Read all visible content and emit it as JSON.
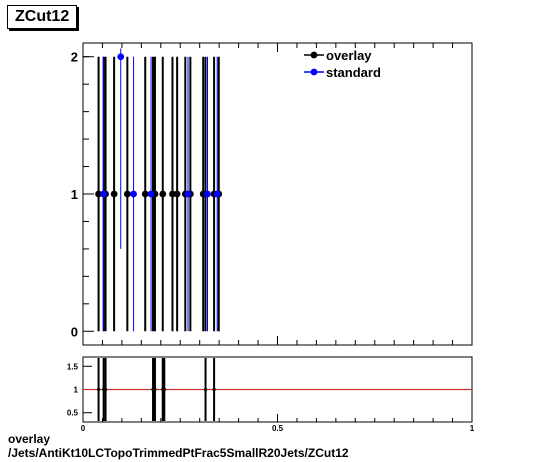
{
  "title": "ZCut12",
  "caption": {
    "line1": "overlay",
    "line2": "/Jets/AntiKt10LCTopoTrimmedPtFrac5SmallR20Jets/ZCut12"
  },
  "colors": {
    "overlay": "#000000",
    "standard": "#0000ff",
    "ratio_line": "#cc3333"
  },
  "chart_data": [
    {
      "type": "scatter",
      "title": "",
      "xlabel": "",
      "ylabel": "",
      "xlim": [
        0,
        1
      ],
      "ylim": [
        -0.1,
        2.1
      ],
      "yticks": [
        "0",
        "1",
        "2"
      ],
      "xticks": [],
      "grid": false,
      "legend_position": "top-right",
      "legend": [
        {
          "name": "overlay",
          "color": "#000000"
        },
        {
          "name": "standard",
          "color": "#0000ff"
        }
      ],
      "series": [
        {
          "name": "overlay",
          "points": [
            {
              "x": 0.04,
              "y": 1,
              "yerr": 1
            },
            {
              "x": 0.053,
              "y": 1,
              "yerr": 1
            },
            {
              "x": 0.058,
              "y": 1,
              "yerr": 1
            },
            {
              "x": 0.08,
              "y": 1,
              "yerr": 1
            },
            {
              "x": 0.114,
              "y": 1,
              "yerr": 1
            },
            {
              "x": 0.16,
              "y": 1,
              "yerr": 1
            },
            {
              "x": 0.18,
              "y": 1,
              "yerr": 1
            },
            {
              "x": 0.185,
              "y": 1,
              "yerr": 1
            },
            {
              "x": 0.205,
              "y": 1,
              "yerr": 1
            },
            {
              "x": 0.23,
              "y": 1,
              "yerr": 1
            },
            {
              "x": 0.242,
              "y": 1,
              "yerr": 1
            },
            {
              "x": 0.263,
              "y": 1,
              "yerr": 1
            },
            {
              "x": 0.276,
              "y": 1,
              "yerr": 1
            },
            {
              "x": 0.309,
              "y": 1,
              "yerr": 1
            },
            {
              "x": 0.315,
              "y": 1,
              "yerr": 1
            },
            {
              "x": 0.337,
              "y": 1,
              "yerr": 1
            },
            {
              "x": 0.349,
              "y": 1,
              "yerr": 1
            }
          ]
        },
        {
          "name": "standard",
          "points": [
            {
              "x": 0.053,
              "y": 1,
              "yerr": 1
            },
            {
              "x": 0.097,
              "y": 2,
              "yerr": 1.4
            },
            {
              "x": 0.13,
              "y": 1,
              "yerr": 1
            },
            {
              "x": 0.175,
              "y": 1,
              "yerr": 1
            },
            {
              "x": 0.27,
              "y": 1,
              "yerr": 1
            },
            {
              "x": 0.32,
              "y": 1,
              "yerr": 1
            },
            {
              "x": 0.345,
              "y": 1,
              "yerr": 1
            }
          ]
        }
      ]
    },
    {
      "type": "scatter",
      "title": "",
      "xlabel": "",
      "ylabel": "",
      "xlim": [
        0,
        1
      ],
      "ylim": [
        0.3,
        1.7
      ],
      "yticks": [
        "0.5",
        "1",
        "1.5"
      ],
      "xticks": [
        "0",
        "0.5",
        "1"
      ],
      "reference_line": 1,
      "series": [
        {
          "name": "ratio",
          "points": [
            {
              "x": 0.04,
              "y": 1,
              "yerr": 1
            },
            {
              "x": 0.053,
              "y": 1,
              "yerr": 1
            },
            {
              "x": 0.058,
              "y": 1,
              "yerr": 1
            },
            {
              "x": 0.18,
              "y": 1,
              "yerr": 1
            },
            {
              "x": 0.185,
              "y": 1,
              "yerr": 1
            },
            {
              "x": 0.205,
              "y": 1,
              "yerr": 1
            },
            {
              "x": 0.209,
              "y": 1,
              "yerr": 1
            },
            {
              "x": 0.315,
              "y": 1,
              "yerr": 1
            },
            {
              "x": 0.337,
              "y": 1,
              "yerr": 1
            }
          ]
        }
      ]
    }
  ]
}
